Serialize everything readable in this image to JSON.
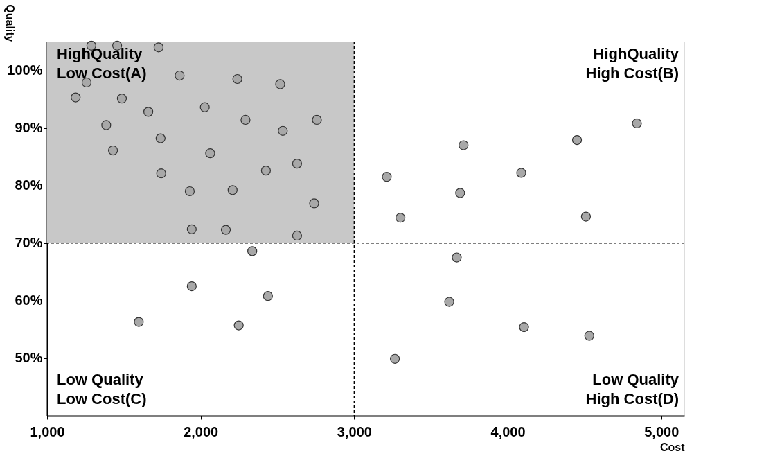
{
  "chart_data": {
    "type": "scatter",
    "xlabel": "Cost",
    "ylabel": "Quality",
    "x": [
      1288,
      1456,
      1726,
      1257,
      1186,
      1863,
      1487,
      2239,
      2518,
      2027,
      1659,
      2292,
      2757,
      1385,
      2535,
      1739,
      1429,
      2062,
      2628,
      2425,
      1743,
      1929,
      2208,
      2739,
      1942,
      2164,
      2628,
      2336,
      1942,
      2438,
      1597,
      2248,
      4841,
      4451,
      3712,
      4088,
      3212,
      3690,
      3301,
      4509,
      3668,
      3619,
      4106,
      4531,
      3265
    ],
    "series": [
      {
        "color": "#a8a8a8",
        "values": [
          104.3,
          104.3,
          104.0,
          97.9,
          95.3,
          99.1,
          95.1,
          98.5,
          97.6,
          93.6,
          92.8,
          91.4,
          91.4,
          90.5,
          89.5,
          88.2,
          86.1,
          85.6,
          83.8,
          82.6,
          82.1,
          79.0,
          79.2,
          76.9,
          72.4,
          72.3,
          71.3,
          68.6,
          62.5,
          60.8,
          56.3,
          55.7,
          90.8,
          87.9,
          87.0,
          82.2,
          81.5,
          78.7,
          74.4,
          74.6,
          67.5,
          59.8,
          55.4,
          53.9,
          49.9
        ]
      }
    ],
    "marker": "circle",
    "grid": false,
    "xlim": [
      1000,
      5150
    ],
    "ylim": [
      40,
      105
    ],
    "xticks": [
      {
        "value": 1000,
        "label": "1,000"
      },
      {
        "value": 2000,
        "label": "2,000"
      },
      {
        "value": 3000,
        "label": "3,000"
      },
      {
        "value": 4000,
        "label": "4,000"
      },
      {
        "value": 5000,
        "label": "5,000"
      }
    ],
    "yticks": [
      {
        "value": 50,
        "label": "50%"
      },
      {
        "value": 60,
        "label": "60%"
      },
      {
        "value": 70,
        "label": "70%"
      },
      {
        "value": 80,
        "label": "80%"
      },
      {
        "value": 90,
        "label": "90%"
      },
      {
        "value": 100,
        "label": "100%"
      }
    ],
    "ref_lines": [
      {
        "axis": "y",
        "value": 70,
        "line_style": "dashed",
        "color": "#000000"
      },
      {
        "axis": "x",
        "value": 3000,
        "line_style": "dashed",
        "color": "#000000"
      }
    ],
    "bands": [
      {
        "axis": "x",
        "from": 1000,
        "to": 3000,
        "color": "#c8c8c8"
      }
    ],
    "annotations": [
      "HighQuality\nLow Cost(A)",
      "HighQuality\nHigh Cost(B)",
      "Low Quality\nLow Cost(C)",
      "Low Quality\nHigh Cost(D)"
    ]
  }
}
